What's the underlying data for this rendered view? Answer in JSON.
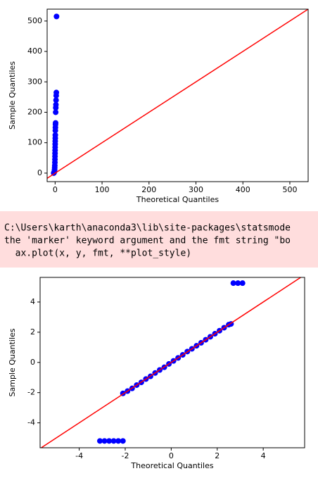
{
  "chart_data": [
    {
      "type": "scatter",
      "xlabel": "Theoretical Quantiles",
      "ylabel": "Sample Quantiles",
      "x": [
        -3,
        -2.6,
        -2.2,
        -1.9,
        -1.6,
        -1.3,
        -1.1,
        -0.9,
        -0.7,
        -0.5,
        -0.4,
        -0.3,
        -0.2,
        -0.1,
        0,
        0.1,
        0.2,
        0.3,
        0.4,
        0.5,
        0.6,
        0.8,
        1,
        1.2,
        1.4,
        1.7,
        2,
        2.3,
        2.6,
        3
      ],
      "values": [
        0,
        1,
        2,
        3,
        5,
        8,
        12,
        18,
        25,
        35,
        45,
        55,
        65,
        75,
        85,
        95,
        105,
        115,
        125,
        140,
        150,
        160,
        165,
        200,
        215,
        225,
        240,
        255,
        265,
        515
      ],
      "color": "#0000ff",
      "line_color": "#ff0000",
      "xlim": [
        -17,
        539
      ],
      "ylim": [
        -28,
        539
      ],
      "xticks": [
        0,
        100,
        200,
        300,
        400,
        500
      ],
      "yticks": [
        0,
        100,
        200,
        300,
        400,
        500
      ]
    },
    {
      "type": "scatter",
      "xlabel": "Theoretical Quantiles",
      "ylabel": "Sample Quantiles",
      "x": [
        -3.1,
        -2.9,
        -2.7,
        -2.5,
        -2.3,
        -2.1,
        -2.1,
        -1.9,
        -1.7,
        -1.5,
        -1.3,
        -1.1,
        -0.9,
        -0.7,
        -0.5,
        -0.3,
        -0.1,
        0.1,
        0.3,
        0.5,
        0.7,
        0.9,
        1.1,
        1.3,
        1.5,
        1.7,
        1.9,
        2.1,
        2.3,
        2.5,
        2.6,
        2.7,
        2.9,
        3.1
      ],
      "values": [
        -5.2,
        -5.2,
        -5.2,
        -5.2,
        -5.2,
        -5.2,
        -2.05,
        -1.9,
        -1.72,
        -1.5,
        -1.32,
        -1.1,
        -0.92,
        -0.7,
        -0.5,
        -0.32,
        -0.1,
        0.1,
        0.3,
        0.5,
        0.72,
        0.9,
        1.1,
        1.3,
        1.5,
        1.7,
        1.9,
        2.1,
        2.3,
        2.5,
        2.55,
        5.25,
        5.25,
        5.25
      ],
      "color": "#0000ff",
      "line_color": "#ff0000",
      "xlim": [
        -5.7,
        5.8
      ],
      "ylim": [
        -5.65,
        5.63
      ],
      "xticks": [
        -4,
        -2,
        0,
        2,
        4
      ],
      "yticks": [
        -4,
        -2,
        0,
        2,
        4
      ]
    }
  ],
  "warning": {
    "lines": [
      "C:\\Users\\karth\\anaconda3\\lib\\site-packages\\statsmode",
      "the 'marker' keyword argument and the fmt string \"bo",
      "  ax.plot(x, y, fmt, **plot_style)"
    ]
  }
}
